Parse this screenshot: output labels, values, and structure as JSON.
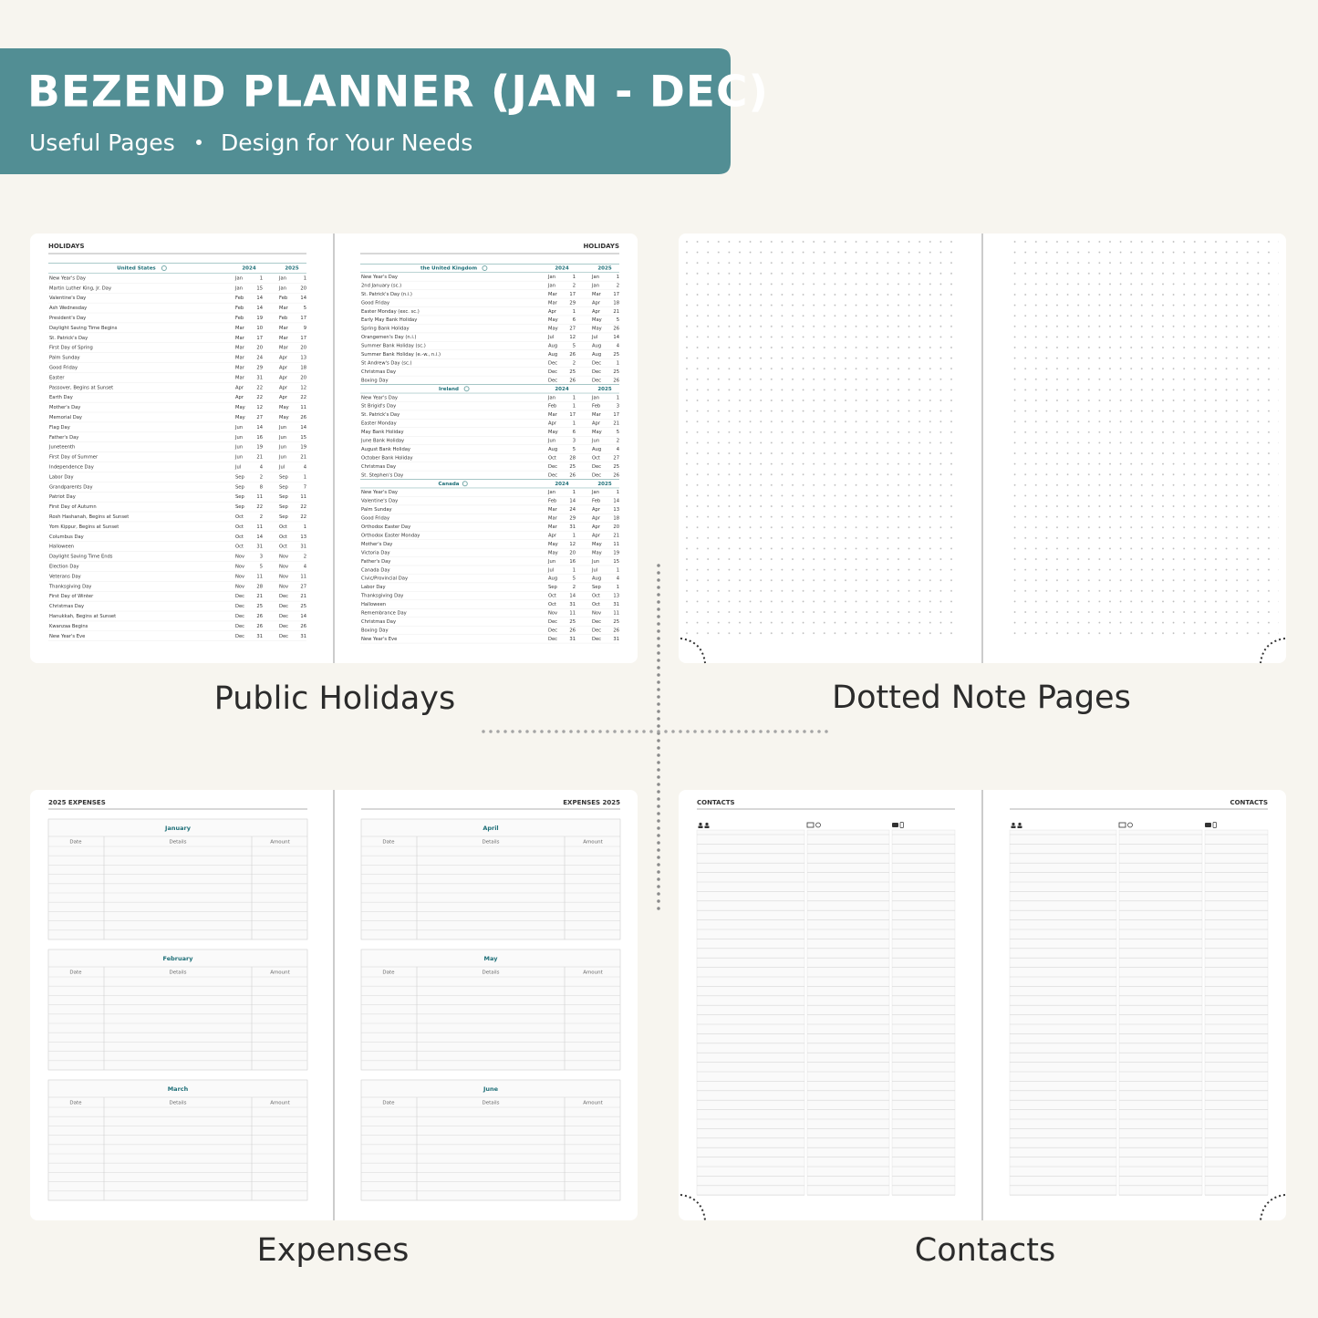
{
  "header": {
    "title": "BEZEND PLANNER (JAN - DEC)",
    "subtitle": [
      "Useful Pages",
      "Design for Your Needs"
    ]
  },
  "captions": [
    "Public Holidays",
    "Dotted Note Pages",
    "Expenses",
    "Contacts"
  ],
  "holidays": {
    "title": "HOLIDAYS",
    "sections": [
      {
        "name": "United States",
        "years": [
          2024,
          2025
        ],
        "rows": [
          [
            "New Year's Day",
            "Jan",
            1,
            "Jan",
            1
          ],
          [
            "Martin Luther King, Jr. Day",
            "Jan",
            15,
            "Jan",
            20
          ],
          [
            "Valentine's Day",
            "Feb",
            14,
            "Feb",
            14
          ],
          [
            "Ash Wednesday",
            "Feb",
            14,
            "Mar",
            5
          ],
          [
            "President's Day",
            "Feb",
            19,
            "Feb",
            17
          ],
          [
            "Daylight Saving Time Begins",
            "Mar",
            10,
            "Mar",
            9
          ],
          [
            "St. Patrick's Day",
            "Mar",
            17,
            "Mar",
            17
          ],
          [
            "First Day of Spring",
            "Mar",
            20,
            "Mar",
            20
          ],
          [
            "Palm Sunday",
            "Mar",
            24,
            "Apr",
            13
          ],
          [
            "Good Friday",
            "Mar",
            29,
            "Apr",
            18
          ],
          [
            "Easter",
            "Mar",
            31,
            "Apr",
            20
          ],
          [
            "Passover, Begins at Sunset",
            "Apr",
            22,
            "Apr",
            12
          ],
          [
            "Earth Day",
            "Apr",
            22,
            "Apr",
            22
          ],
          [
            "Mother's Day",
            "May",
            12,
            "May",
            11
          ],
          [
            "Memorial Day",
            "May",
            27,
            "May",
            26
          ],
          [
            "Flag Day",
            "Jun",
            14,
            "Jun",
            14
          ],
          [
            "Father's Day",
            "Jun",
            16,
            "Jun",
            15
          ],
          [
            "Juneteenth",
            "Jun",
            19,
            "Jun",
            19
          ],
          [
            "First Day of Summer",
            "Jun",
            21,
            "Jun",
            21
          ],
          [
            "Independence Day",
            "Jul",
            4,
            "Jul",
            4
          ],
          [
            "Labor Day",
            "Sep",
            2,
            "Sep",
            1
          ],
          [
            "Grandparents Day",
            "Sep",
            8,
            "Sep",
            7
          ],
          [
            "Patriot Day",
            "Sep",
            11,
            "Sep",
            11
          ],
          [
            "First Day of Autumn",
            "Sep",
            22,
            "Sep",
            22
          ],
          [
            "Rosh Hashanah, Begins at Sunset",
            "Oct",
            2,
            "Sep",
            22
          ],
          [
            "Yom Kippur, Begins at Sunset",
            "Oct",
            11,
            "Oct",
            1
          ],
          [
            "Columbus Day",
            "Oct",
            14,
            "Oct",
            13
          ],
          [
            "Halloween",
            "Oct",
            31,
            "Oct",
            31
          ],
          [
            "Daylight Saving Time Ends",
            "Nov",
            3,
            "Nov",
            2
          ],
          [
            "Election Day",
            "Nov",
            5,
            "Nov",
            4
          ],
          [
            "Veterans Day",
            "Nov",
            11,
            "Nov",
            11
          ],
          [
            "Thanksgiving Day",
            "Nov",
            28,
            "Nov",
            27
          ],
          [
            "First Day of Winter",
            "Dec",
            21,
            "Dec",
            21
          ],
          [
            "Christmas Day",
            "Dec",
            25,
            "Dec",
            25
          ],
          [
            "Hanukkah, Begins at Sunset",
            "Dec",
            26,
            "Dec",
            14
          ],
          [
            "Kwanzaa Begins",
            "Dec",
            26,
            "Dec",
            26
          ],
          [
            "New Year's Eve",
            "Dec",
            31,
            "Dec",
            31
          ]
        ]
      },
      {
        "name": "the United Kingdom",
        "years": [
          2024,
          2025
        ],
        "rows": [
          [
            "New Year's Day",
            "Jan",
            1,
            "Jan",
            1
          ],
          [
            "2nd January (sc.)",
            "Jan",
            2,
            "Jan",
            2
          ],
          [
            "St. Patrick's Day (n.i.)",
            "Mar",
            17,
            "Mar",
            17
          ],
          [
            "Good Friday",
            "Mar",
            29,
            "Apr",
            18
          ],
          [
            "Easter Monday (exc. sc.)",
            "Apr",
            1,
            "Apr",
            21
          ],
          [
            "Early May Bank Holiday",
            "May",
            6,
            "May",
            5
          ],
          [
            "Spring Bank Holiday",
            "May",
            27,
            "May",
            26
          ],
          [
            "Orangemen's Day (n.i.)",
            "Jul",
            12,
            "Jul",
            14
          ],
          [
            "Summer Bank Holiday (sc.)",
            "Aug",
            5,
            "Aug",
            4
          ],
          [
            "Summer Bank Holiday (e.-w., n.i.)",
            "Aug",
            26,
            "Aug",
            25
          ],
          [
            "St Andrew's Day (sc.)",
            "Dec",
            2,
            "Dec",
            1
          ],
          [
            "Christmas Day",
            "Dec",
            25,
            "Dec",
            25
          ],
          [
            "Boxing Day",
            "Dec",
            26,
            "Dec",
            26
          ]
        ]
      },
      {
        "name": "Ireland",
        "years": [
          2024,
          2025
        ],
        "rows": [
          [
            "New Year's Day",
            "Jan",
            1,
            "Jan",
            1
          ],
          [
            "St Brigid's Day",
            "Feb",
            1,
            "Feb",
            3
          ],
          [
            "St. Patrick's Day",
            "Mar",
            17,
            "Mar",
            17
          ],
          [
            "Easter Monday",
            "Apr",
            1,
            "Apr",
            21
          ],
          [
            "May Bank Holiday",
            "May",
            6,
            "May",
            5
          ],
          [
            "June Bank Holiday",
            "Jun",
            3,
            "Jun",
            2
          ],
          [
            "August Bank Holiday",
            "Aug",
            5,
            "Aug",
            4
          ],
          [
            "October Bank Holiday",
            "Oct",
            28,
            "Oct",
            27
          ],
          [
            "Christmas Day",
            "Dec",
            25,
            "Dec",
            25
          ],
          [
            "St. Stephen's Day",
            "Dec",
            26,
            "Dec",
            26
          ]
        ]
      },
      {
        "name": "Canada",
        "years": [
          2024,
          2025
        ],
        "rows": [
          [
            "New Year's Day",
            "Jan",
            1,
            "Jan",
            1
          ],
          [
            "Valentine's Day",
            "Feb",
            14,
            "Feb",
            14
          ],
          [
            "Palm Sunday",
            "Mar",
            24,
            "Apr",
            13
          ],
          [
            "Good Friday",
            "Mar",
            29,
            "Apr",
            18
          ],
          [
            "Orthodox Easter Day",
            "Mar",
            31,
            "Apr",
            20
          ],
          [
            "Orthodox Easter Monday",
            "Apr",
            1,
            "Apr",
            21
          ],
          [
            "Mother's Day",
            "May",
            12,
            "May",
            11
          ],
          [
            "Victoria Day",
            "May",
            20,
            "May",
            19
          ],
          [
            "Father's Day",
            "Jun",
            16,
            "Jun",
            15
          ],
          [
            "Canada Day",
            "Jul",
            1,
            "Jul",
            1
          ],
          [
            "Civic/Provincial Day",
            "Aug",
            5,
            "Aug",
            4
          ],
          [
            "Labor Day",
            "Sep",
            2,
            "Sep",
            1
          ],
          [
            "Thanksgiving Day",
            "Oct",
            14,
            "Oct",
            13
          ],
          [
            "Halloween",
            "Oct",
            31,
            "Oct",
            31
          ],
          [
            "Remembrance Day",
            "Nov",
            11,
            "Nov",
            11
          ],
          [
            "Christmas Day",
            "Dec",
            25,
            "Dec",
            25
          ],
          [
            "Boxing Day",
            "Dec",
            26,
            "Dec",
            26
          ],
          [
            "New Year's Eve",
            "Dec",
            31,
            "Dec",
            31
          ]
        ]
      }
    ]
  },
  "expenses": {
    "title_left": "2025 EXPENSES",
    "title_right": "EXPENSES 2025",
    "columns": [
      "Date",
      "Details",
      "Amount"
    ],
    "months": [
      "January",
      "February",
      "March",
      "April",
      "May",
      "June"
    ]
  },
  "contacts": {
    "title": "CONTACTS"
  }
}
